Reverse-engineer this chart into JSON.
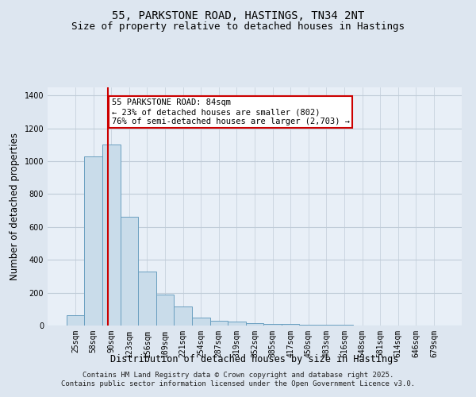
{
  "title1": "55, PARKSTONE ROAD, HASTINGS, TN34 2NT",
  "title2": "Size of property relative to detached houses in Hastings",
  "xlabel": "Distribution of detached houses by size in Hastings",
  "ylabel": "Number of detached properties",
  "categories": [
    "25sqm",
    "58sqm",
    "90sqm",
    "123sqm",
    "156sqm",
    "189sqm",
    "221sqm",
    "254sqm",
    "287sqm",
    "319sqm",
    "352sqm",
    "385sqm",
    "417sqm",
    "450sqm",
    "483sqm",
    "516sqm",
    "548sqm",
    "581sqm",
    "614sqm",
    "646sqm",
    "679sqm"
  ],
  "bar_heights": [
    65,
    1030,
    1100,
    660,
    330,
    190,
    115,
    47,
    28,
    22,
    15,
    10,
    8,
    5,
    3,
    3,
    2,
    2,
    1,
    1,
    1
  ],
  "bar_color": "#c9dcea",
  "bar_edge_color": "#6a9fc0",
  "bar_edge_width": 0.7,
  "red_line_x": 1.82,
  "red_line_color": "#cc0000",
  "ylim": [
    0,
    1450
  ],
  "yticks": [
    0,
    200,
    400,
    600,
    800,
    1000,
    1200,
    1400
  ],
  "annotation_title": "55 PARKSTONE ROAD: 84sqm",
  "annotation_line1": "← 23% of detached houses are smaller (802)",
  "annotation_line2": "76% of semi-detached houses are larger (2,703) →",
  "annotation_box_color": "#ffffff",
  "annotation_border_color": "#cc0000",
  "footer1": "Contains HM Land Registry data © Crown copyright and database right 2025.",
  "footer2": "Contains public sector information licensed under the Open Government Licence v3.0.",
  "bg_color": "#dde6f0",
  "plot_bg_color": "#e8eff7",
  "grid_color": "#c0ccd8",
  "title_fontsize": 10,
  "subtitle_fontsize": 9,
  "axis_label_fontsize": 8.5,
  "tick_fontsize": 7,
  "footer_fontsize": 6.5,
  "annot_fontsize": 7.5
}
